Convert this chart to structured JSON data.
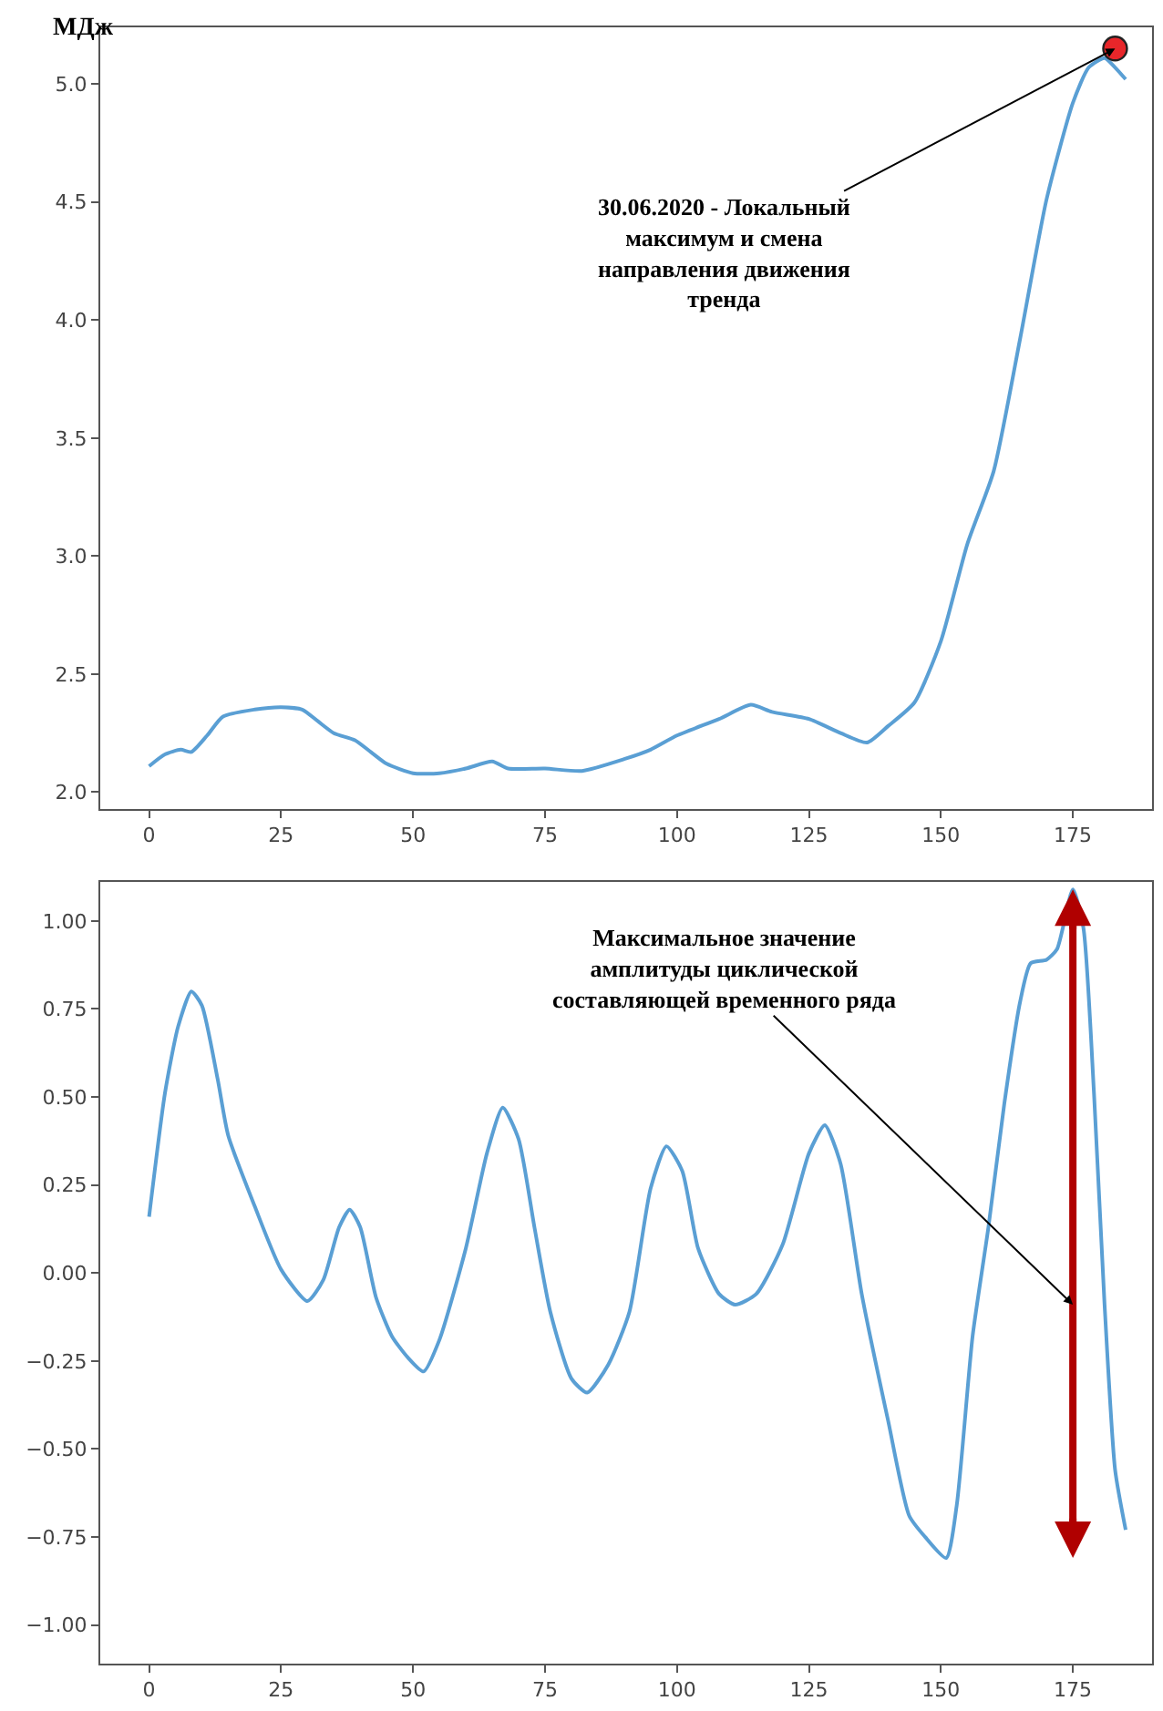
{
  "chart_data": [
    {
      "type": "line",
      "ylabel": "МДж",
      "xlim": [
        -9.25,
        190
      ],
      "xticks": [
        0,
        25,
        50,
        75,
        100,
        125,
        150,
        175
      ],
      "ylim": [
        1.93,
        5.24
      ],
      "yticks": [
        {
          "value": 2,
          "label": "2.0"
        },
        2.5,
        {
          "value": 3,
          "label": "3.0"
        },
        3.5,
        {
          "value": 4,
          "label": "4.0"
        },
        4.5,
        {
          "value": 5,
          "label": "5.0"
        }
      ],
      "series": [
        {
          "color": "#5a9fd4",
          "marker": "none",
          "x": [
            0,
            3,
            6,
            8,
            11,
            14,
            20,
            25,
            29,
            32,
            35,
            39,
            42,
            45,
            50,
            55,
            60,
            65,
            68,
            75,
            82,
            90,
            95,
            100,
            108,
            114,
            118,
            125,
            131,
            136,
            140,
            145,
            150,
            155,
            160,
            165,
            170,
            175,
            178,
            181,
            183,
            185
          ],
          "values": [
            2.11,
            2.16,
            2.18,
            2.17,
            2.24,
            2.32,
            2.35,
            2.36,
            2.35,
            2.3,
            2.25,
            2.22,
            2.17,
            2.12,
            2.08,
            2.08,
            2.1,
            2.13,
            2.1,
            2.1,
            2.09,
            2.14,
            2.18,
            2.24,
            2.31,
            2.37,
            2.34,
            2.31,
            2.25,
            2.21,
            2.28,
            2.38,
            2.64,
            3.05,
            3.36,
            3.92,
            4.51,
            4.92,
            5.07,
            5.11,
            5.07,
            5.02
          ]
        },
        {
          "type": "scatter",
          "color": "#e8262a",
          "marker": "circle",
          "x": [
            183
          ],
          "values": [
            5.15
          ]
        }
      ],
      "annotations": [
        {
          "text": "30.06.2020 - Локальный максимум и смена направления движения тренда",
          "x": 183,
          "y": 5.15
        }
      ]
    },
    {
      "type": "line",
      "xlim": [
        -9.25,
        190
      ],
      "xticks": [
        0,
        25,
        50,
        75,
        100,
        125,
        150,
        175
      ],
      "ylim": [
        -1.11,
        1.11
      ],
      "yticks": [
        {
          "value": -1,
          "label": "−1.00"
        },
        {
          "value": -0.75,
          "label": "−0.75"
        },
        {
          "value": -0.5,
          "label": "−0.50"
        },
        {
          "value": -0.25,
          "label": "−0.25"
        },
        {
          "value": 0,
          "label": "0.00"
        },
        {
          "value": 0.25,
          "label": "0.25"
        },
        {
          "value": 0.5,
          "label": "0.50"
        },
        {
          "value": 0.75,
          "label": "0.75"
        },
        {
          "value": 1,
          "label": "1.00"
        }
      ],
      "ref_lines": [
        {
          "axis": "x",
          "value": 175,
          "color": "#b00000"
        }
      ],
      "series": [
        {
          "color": "#5a9fd4",
          "marker": "none",
          "x": [
            0,
            3,
            5.5,
            8,
            10,
            13,
            15,
            20,
            25,
            30,
            33,
            36,
            38,
            40,
            43,
            46,
            49,
            52,
            55,
            60,
            64,
            67,
            70,
            73,
            76,
            80,
            83,
            87,
            91,
            95,
            98,
            101,
            104,
            108,
            111,
            115,
            120,
            125,
            128,
            131,
            135,
            140,
            144,
            147,
            151,
            153,
            156,
            159,
            162,
            165,
            167,
            170,
            172,
            175,
            177,
            179,
            181,
            183,
            185
          ],
          "values": [
            0.16,
            0.51,
            0.7,
            0.8,
            0.76,
            0.55,
            0.39,
            0.19,
            0.01,
            -0.08,
            -0.02,
            0.13,
            0.18,
            0.13,
            -0.07,
            -0.18,
            -0.24,
            -0.28,
            -0.19,
            0.07,
            0.34,
            0.47,
            0.38,
            0.13,
            -0.11,
            -0.3,
            -0.34,
            -0.26,
            -0.11,
            0.24,
            0.36,
            0.29,
            0.07,
            -0.06,
            -0.09,
            -0.06,
            0.08,
            0.34,
            0.42,
            0.31,
            -0.06,
            -0.42,
            -0.69,
            -0.75,
            -0.81,
            -0.66,
            -0.18,
            0.13,
            0.48,
            0.77,
            0.88,
            0.89,
            0.92,
            1.09,
            0.98,
            0.51,
            -0.09,
            -0.56,
            -0.73
          ]
        }
      ],
      "annotations": [
        {
          "text": "Максимальное значение амплитуды циклической составляющей временного ряда",
          "x": 175,
          "y": -0.09
        }
      ]
    }
  ]
}
